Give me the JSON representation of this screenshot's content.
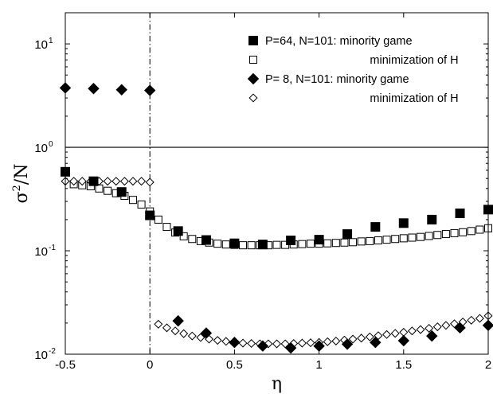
{
  "chart_data": {
    "type": "scatter",
    "title": "",
    "xlabel": "η",
    "ylabel": {
      "base": "σ",
      "sup": "2",
      "rest": "/N"
    },
    "xlim": [
      -0.5,
      2.0
    ],
    "ylim": [
      0.01,
      20
    ],
    "yscale": "log",
    "grid": false,
    "legend_position": "top-right",
    "x_ticks": [
      {
        "value": -0.5,
        "label": "-0.5"
      },
      {
        "value": 0,
        "label": "0"
      },
      {
        "value": 0.5,
        "label": "0.5"
      },
      {
        "value": 1,
        "label": "1"
      },
      {
        "value": 1.5,
        "label": "1.5"
      },
      {
        "value": 2,
        "label": "2"
      }
    ],
    "y_ticks": [
      {
        "value": 0.01,
        "base": "10",
        "exp": "-2"
      },
      {
        "value": 0.1,
        "base": "10",
        "exp": "-1"
      },
      {
        "value": 1,
        "base": "10",
        "exp": "0"
      },
      {
        "value": 10,
        "base": "10",
        "exp": "1"
      }
    ],
    "reference_lines": [
      {
        "orientation": "horizontal",
        "value": 1,
        "style": "solid"
      },
      {
        "orientation": "vertical",
        "value": 0,
        "style": "dash-dot"
      }
    ],
    "series": [
      {
        "name": "P=64, N=101: minority game",
        "marker": "filled-square",
        "x": [
          -0.5,
          -0.333,
          -0.167,
          0.0,
          0.167,
          0.333,
          0.5,
          0.667,
          0.833,
          1.0,
          1.167,
          1.333,
          1.5,
          1.667,
          1.833,
          2.0
        ],
        "y": [
          0.58,
          0.47,
          0.37,
          0.22,
          0.155,
          0.127,
          0.118,
          0.115,
          0.126,
          0.128,
          0.145,
          0.17,
          0.185,
          0.2,
          0.23,
          0.25
        ]
      },
      {
        "name": "minimization of H",
        "marker": "open-square",
        "x": [
          -0.45,
          -0.4,
          -0.35,
          -0.3,
          -0.25,
          -0.2,
          -0.15,
          -0.1,
          -0.05,
          0.0,
          0.05,
          0.1,
          0.15,
          0.2,
          0.25,
          0.3,
          0.35,
          0.4,
          0.45,
          0.5,
          0.55,
          0.6,
          0.65,
          0.7,
          0.75,
          0.8,
          0.85,
          0.9,
          0.95,
          1.0,
          1.05,
          1.1,
          1.15,
          1.2,
          1.25,
          1.3,
          1.35,
          1.4,
          1.45,
          1.5,
          1.55,
          1.6,
          1.65,
          1.7,
          1.75,
          1.8,
          1.85,
          1.9,
          1.95,
          2.0
        ],
        "y": [
          0.44,
          0.43,
          0.42,
          0.4,
          0.38,
          0.36,
          0.34,
          0.31,
          0.28,
          0.24,
          0.2,
          0.17,
          0.15,
          0.138,
          0.13,
          0.124,
          0.12,
          0.117,
          0.115,
          0.114,
          0.113,
          0.113,
          0.113,
          0.113,
          0.114,
          0.114,
          0.115,
          0.116,
          0.117,
          0.117,
          0.118,
          0.119,
          0.12,
          0.121,
          0.123,
          0.124,
          0.126,
          0.128,
          0.13,
          0.132,
          0.134,
          0.136,
          0.139,
          0.142,
          0.145,
          0.148,
          0.151,
          0.155,
          0.16,
          0.165
        ]
      },
      {
        "name": "P= 8, N=101: minority game",
        "marker": "filled-diamond",
        "x": [
          -0.5,
          -0.333,
          -0.167,
          0.0,
          0.167,
          0.333,
          0.5,
          0.667,
          0.833,
          1.0,
          1.167,
          1.333,
          1.5,
          1.667,
          1.833,
          2.0
        ],
        "y": [
          3.75,
          3.7,
          3.6,
          3.55,
          0.021,
          0.016,
          0.013,
          0.012,
          0.0115,
          0.012,
          0.0125,
          0.013,
          0.0135,
          0.015,
          0.018,
          0.019
        ]
      },
      {
        "name": "minimization of H",
        "marker": "open-diamond",
        "x": [
          -0.5,
          -0.45,
          -0.4,
          -0.35,
          -0.3,
          -0.25,
          -0.2,
          -0.15,
          -0.1,
          -0.05,
          0.0,
          0.05,
          0.1,
          0.15,
          0.2,
          0.25,
          0.3,
          0.35,
          0.4,
          0.45,
          0.5,
          0.55,
          0.6,
          0.65,
          0.7,
          0.75,
          0.8,
          0.85,
          0.9,
          0.95,
          1.0,
          1.05,
          1.1,
          1.15,
          1.2,
          1.25,
          1.3,
          1.35,
          1.4,
          1.45,
          1.5,
          1.55,
          1.6,
          1.65,
          1.7,
          1.75,
          1.8,
          1.85,
          1.9,
          1.95,
          2.0
        ],
        "y": [
          0.47,
          0.47,
          0.47,
          0.47,
          0.47,
          0.47,
          0.47,
          0.47,
          0.47,
          0.47,
          0.46,
          0.0195,
          0.018,
          0.0168,
          0.0158,
          0.015,
          0.0145,
          0.014,
          0.0136,
          0.0133,
          0.013,
          0.0128,
          0.0127,
          0.0126,
          0.0126,
          0.0126,
          0.0126,
          0.0127,
          0.0128,
          0.0129,
          0.013,
          0.0132,
          0.0134,
          0.0137,
          0.014,
          0.0143,
          0.0147,
          0.0151,
          0.0155,
          0.0159,
          0.0163,
          0.0168,
          0.0173,
          0.0178,
          0.0184,
          0.019,
          0.0197,
          0.0205,
          0.0213,
          0.0222,
          0.0235
        ]
      }
    ]
  }
}
